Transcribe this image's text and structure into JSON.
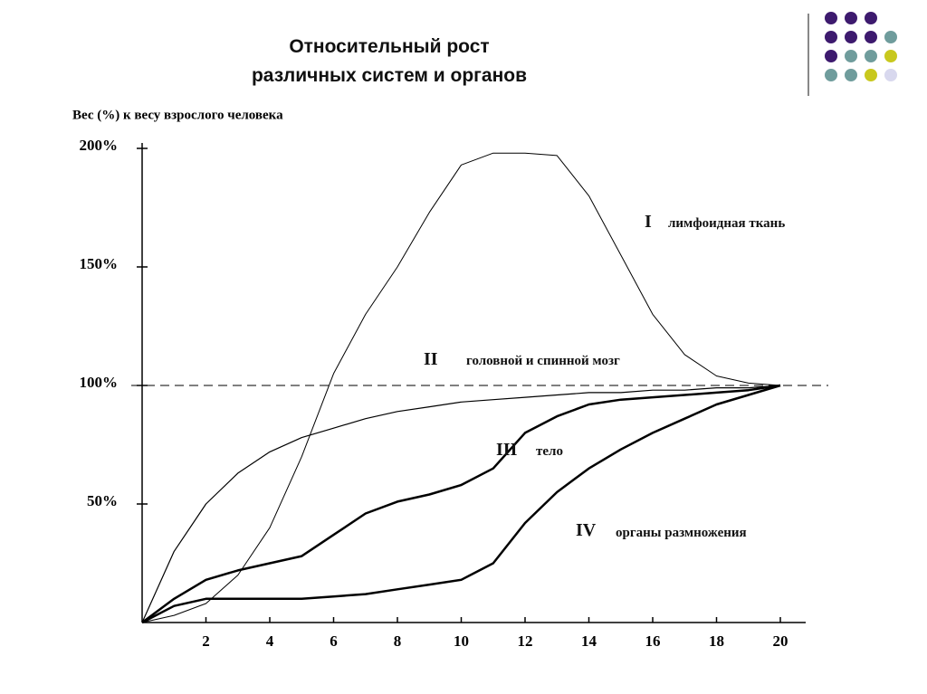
{
  "chart_data": {
    "type": "line",
    "title_lines": [
      "Относительный рост",
      "различных систем и органов"
    ],
    "y_label": "Вес (%) к весу взрослого человека",
    "x": [
      0,
      1,
      2,
      3,
      4,
      5,
      6,
      7,
      8,
      9,
      10,
      11,
      12,
      13,
      14,
      15,
      16,
      17,
      18,
      19,
      20
    ],
    "series": [
      {
        "name": "лимфоидная ткань",
        "roman": "I",
        "color": "#000000",
        "values": [
          0,
          3,
          8,
          20,
          40,
          70,
          105,
          130,
          150,
          173,
          193,
          198,
          198,
          197,
          180,
          155,
          130,
          113,
          104,
          101,
          100
        ]
      },
      {
        "name": "головной и спинной мозг",
        "roman": "II",
        "color": "#000000",
        "values": [
          0,
          30,
          50,
          63,
          72,
          78,
          82,
          86,
          89,
          91,
          93,
          94,
          95,
          96,
          97,
          97,
          98,
          98,
          99,
          99,
          100
        ]
      },
      {
        "name": "тело",
        "roman": "III",
        "color": "#000000",
        "values": [
          0,
          10,
          18,
          22,
          25,
          28,
          37,
          46,
          51,
          54,
          58,
          65,
          80,
          87,
          92,
          94,
          95,
          96,
          97,
          98,
          100
        ]
      },
      {
        "name": "органы размножения",
        "roman": "IV",
        "color": "#000000",
        "values": [
          0,
          7,
          10,
          10,
          10,
          10,
          11,
          12,
          14,
          16,
          18,
          25,
          42,
          55,
          65,
          73,
          80,
          86,
          92,
          96,
          100
        ]
      }
    ],
    "xlim": [
      0,
      21
    ],
    "xticks": [
      2,
      4,
      6,
      8,
      10,
      12,
      14,
      16,
      18,
      20
    ],
    "ylim": [
      0,
      200
    ],
    "yticks": [
      {
        "value": 50,
        "label": "50%"
      },
      {
        "value": 100,
        "label": "100%"
      },
      {
        "value": 150,
        "label": "150%"
      },
      {
        "value": 200,
        "label": "200%"
      }
    ],
    "reference_y": 100
  }
}
